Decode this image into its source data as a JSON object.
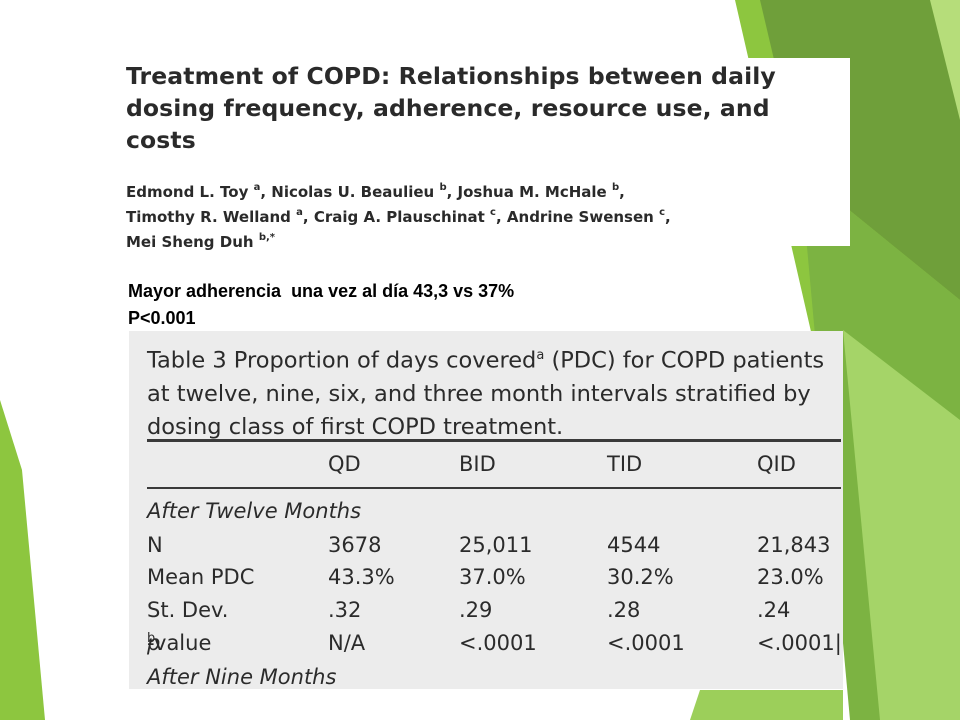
{
  "paper": {
    "title": "Treatment of COPD: Relationships between daily dosing frequency, adherence, resource use, and costs",
    "authors": [
      {
        "name": "Edmond L. Toy",
        "sup": "a"
      },
      {
        "name": "Nicolas U. Beaulieu",
        "sup": "b"
      },
      {
        "name": "Joshua M. McHale",
        "sup": "b"
      },
      {
        "name": "Timothy R. Welland",
        "sup": "a"
      },
      {
        "name": "Craig A. Plauschinat",
        "sup": "c"
      },
      {
        "name": "Andrine Swensen",
        "sup": "c"
      },
      {
        "name": "Mei Sheng Duh",
        "sup": "b,*"
      }
    ]
  },
  "summary": {
    "line1": "Mayor adherencia  una vez al día 43,3 vs 37%",
    "line2": "P<0.001"
  },
  "table": {
    "caption_main": "Table 3   Proportion of days covered",
    "caption_sup": "a",
    "caption_rest": " (PDC) for COPD patients at twelve, nine, six, and three month intervals stratified by dosing class of first COPD treatment.",
    "columns": [
      "",
      "QD",
      "BID",
      "TID",
      "QID"
    ],
    "section1": "After Twelve Months",
    "rows": [
      {
        "label": "N",
        "values": [
          "3678",
          "25,011",
          "4544",
          "21,843"
        ]
      },
      {
        "label": "Mean PDC",
        "values": [
          "43.3%",
          "37.0%",
          "30.2%",
          "23.0%"
        ]
      },
      {
        "label": "St. Dev.",
        "values": [
          ".32",
          ".29",
          ".28",
          ".24"
        ]
      }
    ],
    "pvalue": {
      "label_italic": "p",
      "label_rest": "-value",
      "sup": "b",
      "values": [
        "N/A",
        "<.0001",
        "<.0001",
        "<.0001|"
      ]
    },
    "section2": "After Nine Months"
  },
  "colors": {
    "green_light": "#8dc63f",
    "green_mid": "#6aa84f",
    "green_dark": "#4e7d32",
    "table_bg": "#ececec"
  }
}
